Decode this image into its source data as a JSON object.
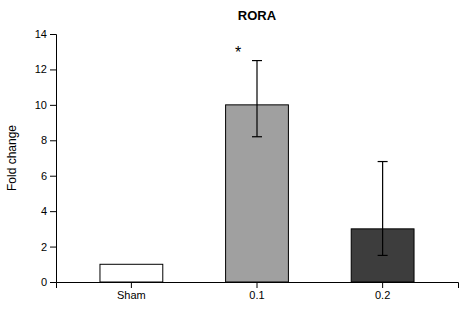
{
  "chart_data": {
    "type": "bar",
    "title": "RORA",
    "ylabel": "Fold change",
    "categories": [
      "Sham",
      "0.1",
      "0.2"
    ],
    "values": [
      1.0,
      10.0,
      3.0
    ],
    "error_upper": [
      null,
      2.5,
      3.8
    ],
    "error_lower": [
      null,
      1.8,
      1.5
    ],
    "colors": [
      "#ffffff",
      "#a0a0a0",
      "#3d3d3d"
    ],
    "ylim": [
      0,
      14
    ],
    "yticks": [
      0,
      2,
      4,
      6,
      8,
      10,
      12,
      14
    ],
    "grid": false,
    "annotations": [
      {
        "text": "*",
        "category": "0.1"
      }
    ]
  }
}
